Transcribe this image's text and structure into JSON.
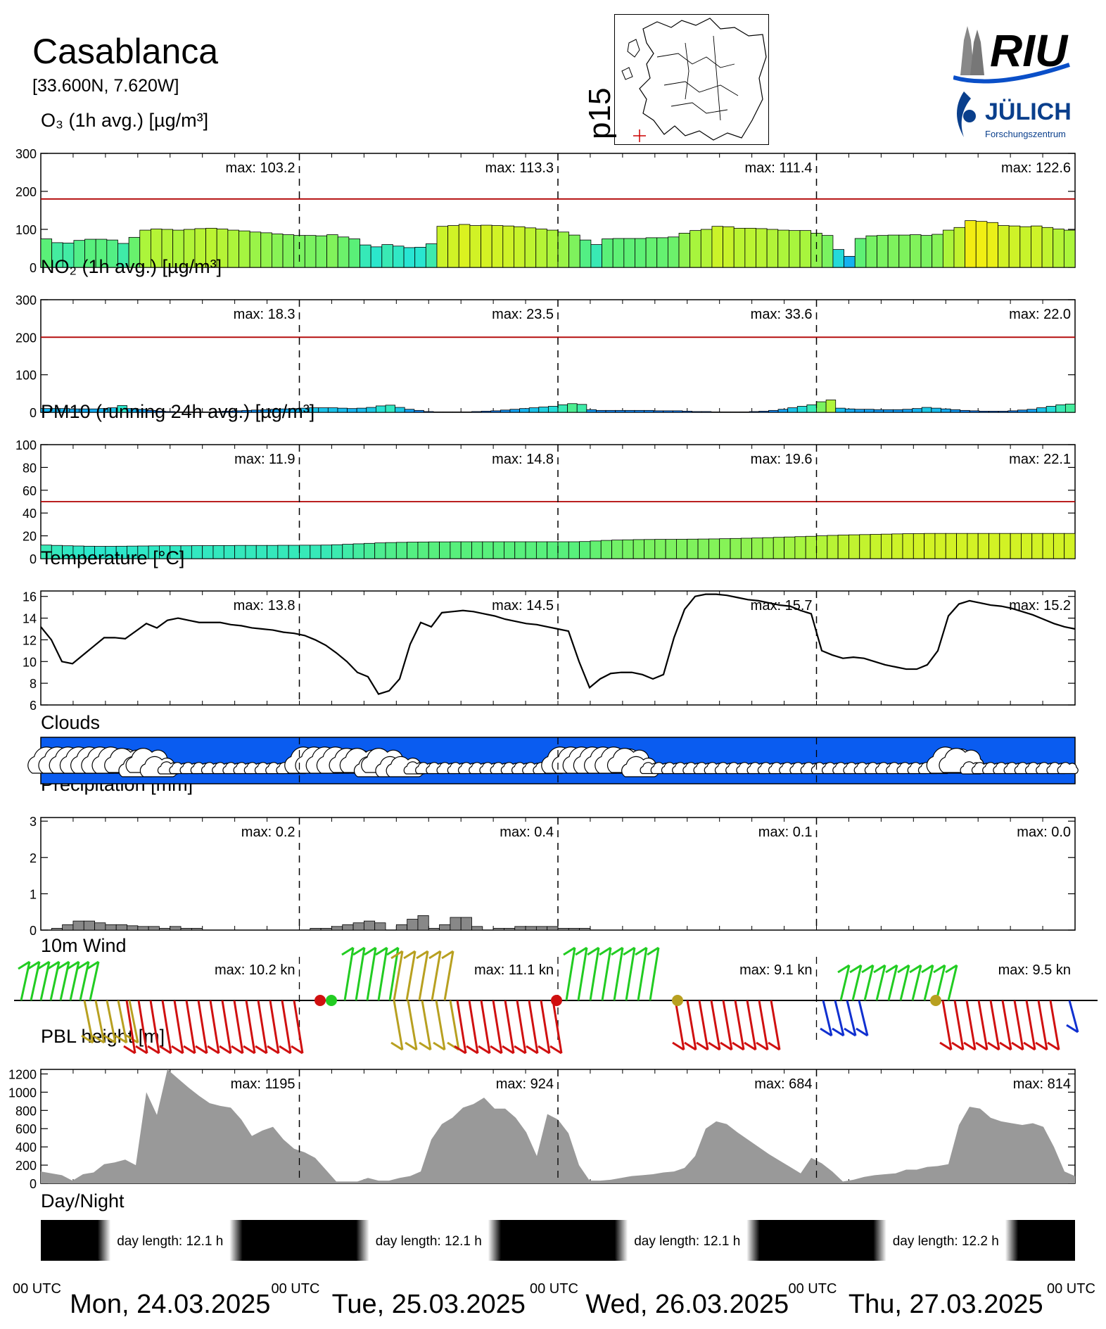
{
  "header": {
    "site_name": "Casablanca",
    "coords": "[33.600N,  7.620W]",
    "map_label": "p15",
    "logo_riu": "RIU",
    "logo_juelich": "JÜLICH",
    "logo_juelich_sub": "Forschungszentrum"
  },
  "colors": {
    "limit_line": "#b00000",
    "clouds_bg": "#0a5cf0",
    "bar_edge": "#000000"
  },
  "time_axis": {
    "utc_labels": [
      "00 UTC",
      "00 UTC",
      "00 UTC",
      "00 UTC",
      "00 UTC"
    ],
    "days": [
      "Mon, 24.03.2025",
      "Tue, 25.03.2025",
      "Wed, 26.03.2025",
      "Thu, 27.03.2025"
    ]
  },
  "chart_data": [
    {
      "id": "o3",
      "type": "bar",
      "title": "O₃ (1h avg.) [µg/m³]",
      "ylim": [
        0,
        300
      ],
      "yticks": [
        0,
        100,
        200,
        300
      ],
      "limit": 180,
      "max_labels": [
        "max: 103.2",
        "max: 113.3",
        "max: 111.4",
        "max: 122.6"
      ],
      "values": [
        75,
        65,
        64,
        71,
        74,
        74,
        72,
        63,
        79,
        98,
        101,
        100,
        98,
        100,
        102,
        103,
        101,
        98,
        96,
        93,
        91,
        88,
        86,
        84,
        84,
        83,
        86,
        80,
        75,
        59,
        54,
        60,
        56,
        52,
        53,
        62,
        108,
        110,
        113,
        110,
        111,
        110,
        109,
        107,
        104,
        101,
        98,
        93,
        85,
        72,
        60,
        75,
        76,
        76,
        76,
        78,
        78,
        80,
        90,
        97,
        100,
        108,
        107,
        103,
        103,
        102,
        100,
        98,
        97,
        97,
        90,
        84,
        47,
        29,
        76,
        83,
        84,
        85,
        85,
        86,
        84,
        87,
        98,
        105,
        123,
        121,
        118,
        110,
        109,
        107,
        109,
        105,
        101,
        98
      ],
      "grid": false
    },
    {
      "id": "no2",
      "type": "bar",
      "title": "NO₂ (1h avg.) [µg/m³]",
      "ylim": [
        0,
        300
      ],
      "yticks": [
        0,
        100,
        200,
        300
      ],
      "limit": 200,
      "max_labels": [
        "max:  18.3",
        "max:  23.5",
        "max:  33.6",
        "max:  22.0"
      ],
      "values": [
        10,
        10,
        10,
        9,
        9,
        9,
        10,
        12,
        18,
        10,
        8,
        5,
        3,
        2,
        1,
        1,
        1,
        1,
        2,
        3,
        4,
        5,
        6,
        7,
        8,
        9,
        10,
        11,
        12,
        12,
        12,
        11,
        10,
        11,
        13,
        17,
        19,
        13,
        8,
        5,
        2,
        1,
        1,
        1,
        1,
        2,
        3,
        4,
        6,
        8,
        10,
        12,
        14,
        16,
        20,
        23,
        21,
        7,
        5,
        5,
        5,
        5,
        5,
        5,
        4,
        4,
        4,
        3,
        2,
        2,
        1,
        1,
        1,
        1,
        2,
        3,
        5,
        8,
        12,
        16,
        20,
        28,
        33,
        11,
        9,
        8,
        8,
        7,
        7,
        7,
        8,
        10,
        13,
        11,
        9,
        7,
        5,
        4,
        3,
        3,
        3,
        4,
        6,
        8,
        12,
        16,
        20,
        22
      ],
      "grid": false
    },
    {
      "id": "pm10",
      "type": "bar",
      "title": "PM10 (running 24h avg.) [µg/m³]",
      "ylim": [
        0,
        100
      ],
      "yticks": [
        0,
        20,
        40,
        60,
        80,
        100
      ],
      "limit": 50,
      "max_labels": [
        "max:  11.9",
        "max:  14.8",
        "max:  19.6",
        "max:  22.1"
      ],
      "values": [
        11.9,
        11.6,
        11.3,
        11.1,
        10.9,
        10.8,
        10.8,
        10.9,
        11.0,
        11.1,
        11.2,
        11.3,
        11.3,
        11.3,
        11.4,
        11.4,
        11.5,
        11.5,
        11.6,
        11.6,
        11.6,
        11.6,
        11.7,
        11.7,
        11.8,
        11.8,
        11.9,
        12.2,
        12.6,
        13.0,
        13.4,
        13.8,
        14.1,
        14.3,
        14.5,
        14.6,
        14.7,
        14.7,
        14.8,
        14.8,
        14.8,
        14.8,
        14.8,
        14.8,
        14.8,
        14.8,
        14.8,
        14.8,
        14.8,
        14.8,
        15.0,
        15.5,
        16.0,
        16.3,
        16.5,
        16.7,
        16.8,
        16.9,
        16.9,
        17.0,
        17.1,
        17.2,
        17.3,
        17.5,
        17.7,
        17.9,
        18.1,
        18.4,
        18.7,
        19.0,
        19.3,
        19.6,
        20.0,
        20.4,
        20.7,
        20.9,
        21.1,
        21.3,
        21.5,
        21.7,
        21.9,
        22.0,
        22.1,
        22.1,
        22.1,
        22.1,
        22.1,
        22.1,
        22.1,
        22.1,
        22.1,
        22.1,
        22.1,
        22.1,
        22.1,
        22.1
      ],
      "grid": false
    },
    {
      "id": "temp",
      "type": "line",
      "title": "Temperature [°C]",
      "ylim": [
        6,
        16.5
      ],
      "yticks": [
        6,
        8,
        10,
        12,
        14,
        16
      ],
      "max_labels": [
        "max:  13.8",
        "max:  14.5",
        "max:  15.7",
        "max:  15.2"
      ],
      "values": [
        13.2,
        12.0,
        10.0,
        9.8,
        10.6,
        11.4,
        12.2,
        12.2,
        12.1,
        12.8,
        13.5,
        13.1,
        13.8,
        14.0,
        13.8,
        13.6,
        13.6,
        13.6,
        13.4,
        13.3,
        13.1,
        13.0,
        12.9,
        12.7,
        12.6,
        12.4,
        12.0,
        11.5,
        10.8,
        10.0,
        9.0,
        8.6,
        7.0,
        7.3,
        8.4,
        11.6,
        13.6,
        13.2,
        14.5,
        14.6,
        14.7,
        14.6,
        14.4,
        14.2,
        13.9,
        13.7,
        13.5,
        13.4,
        13.2,
        13.0,
        12.8,
        10.0,
        7.6,
        8.4,
        8.9,
        9.0,
        9.0,
        8.8,
        8.4,
        8.8,
        12.2,
        14.8,
        16.0,
        16.2,
        16.2,
        16.1,
        15.9,
        15.7,
        15.6,
        15.4,
        15.2,
        15.1,
        14.7,
        14.4,
        11.0,
        10.6,
        10.3,
        10.4,
        10.3,
        10.0,
        9.7,
        9.5,
        9.3,
        9.3,
        9.7,
        11.0,
        14.2,
        15.3,
        15.6,
        15.4,
        15.2,
        15.1,
        14.9,
        14.6,
        14.3,
        13.9,
        13.5,
        13.2,
        13.0
      ],
      "grid": false
    },
    {
      "id": "precip",
      "type": "bar",
      "title": "Precipitation [mm]",
      "ylim": [
        0,
        3.1
      ],
      "yticks": [
        0,
        1,
        2,
        3
      ],
      "max_labels": [
        "max:   0.2",
        "max:   0.4",
        "max:   0.1",
        "max:   0.0"
      ],
      "values": [
        0,
        0.05,
        0.15,
        0.25,
        0.25,
        0.2,
        0.15,
        0.15,
        0.12,
        0.1,
        0.1,
        0.05,
        0.1,
        0.05,
        0.05,
        0,
        0,
        0,
        0,
        0,
        0,
        0,
        0,
        0,
        0,
        0.05,
        0.05,
        0.1,
        0.15,
        0.2,
        0.25,
        0.2,
        0,
        0.15,
        0.3,
        0.4,
        0.05,
        0.15,
        0.35,
        0.35,
        0.1,
        0,
        0.05,
        0.05,
        0.1,
        0.1,
        0.1,
        0.1,
        0.05,
        0.05,
        0.05,
        0,
        0,
        0,
        0,
        0,
        0,
        0,
        0,
        0,
        0,
        0,
        0,
        0,
        0,
        0,
        0,
        0,
        0,
        0,
        0,
        0,
        0,
        0,
        0,
        0,
        0,
        0,
        0,
        0,
        0,
        0,
        0,
        0,
        0,
        0,
        0,
        0,
        0,
        0,
        0,
        0,
        0,
        0,
        0,
        0
      ],
      "grid": false
    },
    {
      "id": "pbl",
      "type": "area",
      "title": "PBL height [m]",
      "ylim": [
        0,
        1250
      ],
      "yticks": [
        0,
        200,
        400,
        600,
        800,
        1000,
        1200
      ],
      "max_labels": [
        "max:  1195",
        "max:   924",
        "max:   684",
        "max:   814"
      ],
      "values": [
        130,
        110,
        90,
        30,
        100,
        120,
        210,
        230,
        260,
        200,
        1000,
        750,
        1250,
        1150,
        1050,
        960,
        880,
        850,
        830,
        700,
        520,
        580,
        620,
        480,
        380,
        340,
        280,
        150,
        20,
        20,
        20,
        60,
        30,
        30,
        60,
        80,
        130,
        480,
        650,
        720,
        830,
        870,
        940,
        820,
        820,
        720,
        560,
        300,
        760,
        700,
        550,
        200,
        30,
        30,
        40,
        60,
        80,
        90,
        100,
        120,
        130,
        170,
        300,
        600,
        680,
        650,
        560,
        480,
        400,
        320,
        250,
        180,
        110,
        280,
        220,
        130,
        20,
        40,
        70,
        90,
        100,
        110,
        150,
        150,
        180,
        190,
        210,
        640,
        840,
        820,
        720,
        680,
        660,
        640,
        660,
        620,
        400,
        130,
        80
      ],
      "grid": false
    }
  ],
  "clouds": {
    "title": "Clouds"
  },
  "wind": {
    "title": "10m Wind",
    "max_labels": [
      "max:  10.2 kn",
      "max:  11.1 kn",
      "max:   9.1 kn",
      "max:   9.5 kn"
    ]
  },
  "daynight": {
    "title": "Day/Night",
    "day_lengths": [
      "day length:  12.1 h",
      "day length:  12.1 h",
      "day length:  12.1 h",
      "day length:  12.2 h"
    ]
  }
}
